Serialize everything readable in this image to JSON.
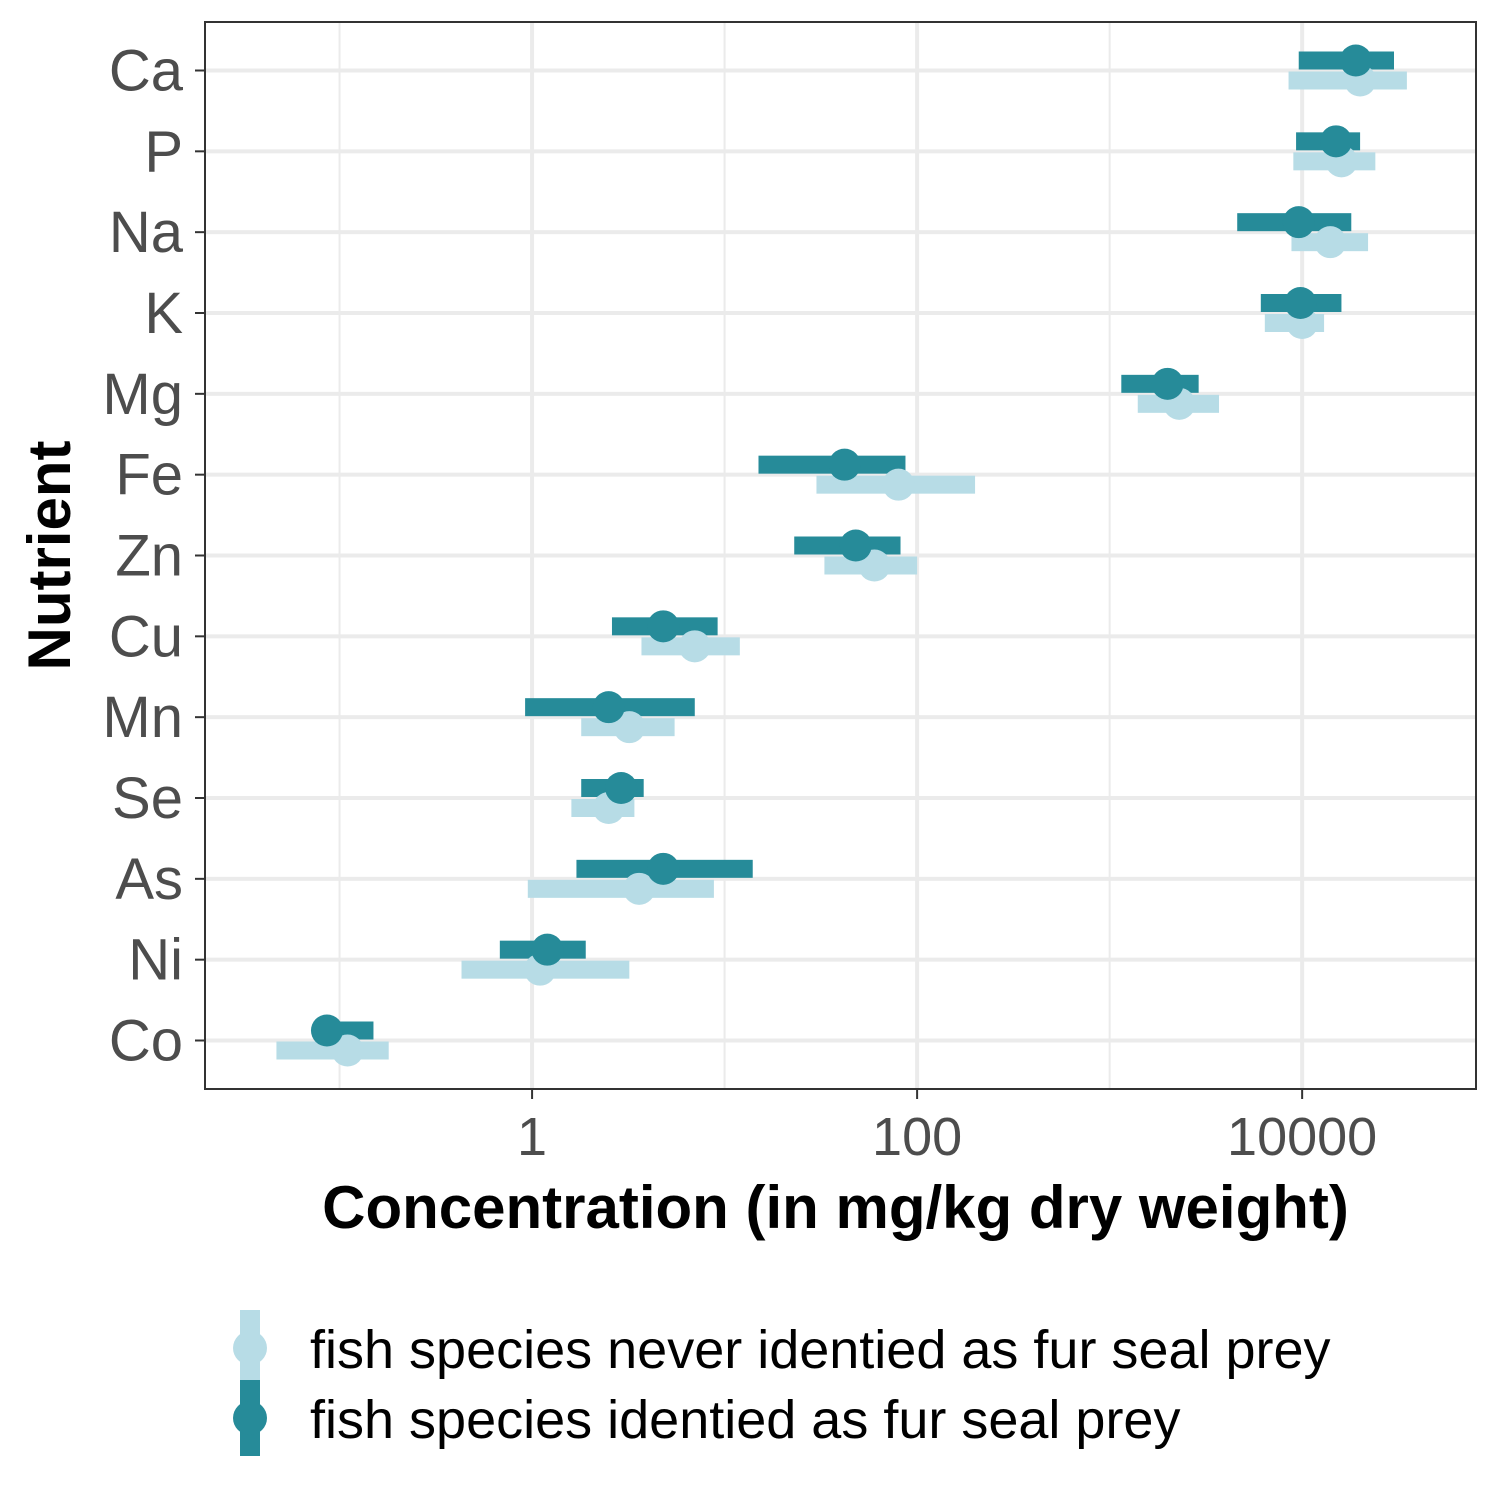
{
  "colors": {
    "not_prey": "#b7dce6",
    "prey": "#268b99",
    "grid": "#ebebeb",
    "panel_border": "#333333",
    "tick_text": "#4d4d4d"
  },
  "chart_data": {
    "type": "scatter",
    "subtype": "dot-and-range (point with horizontal interval)",
    "title": "",
    "xlabel": "Concentration (in mg/kg dry weight)",
    "ylabel": "Nutrient",
    "x_scale": "log10",
    "xlim": [
      0.02,
      80000
    ],
    "x_tick_labels": [
      "1",
      "100",
      "10000"
    ],
    "x_ticks": [
      1,
      100,
      10000
    ],
    "grid": true,
    "legend_position": "bottom",
    "categories": [
      "Ca",
      "P",
      "Na",
      "K",
      "Mg",
      "Fe",
      "Zn",
      "Cu",
      "Mn",
      "Se",
      "As",
      "Ni",
      "Co"
    ],
    "series": [
      {
        "name": "fish species never identied as fur seal prey",
        "color_key": "not_prey",
        "points": [
          {
            "category": "Ca",
            "value": 20000,
            "low": 8500,
            "high": 35000
          },
          {
            "category": "P",
            "value": 16000,
            "low": 9000,
            "high": 24000
          },
          {
            "category": "Na",
            "value": 14000,
            "low": 8800,
            "high": 22000
          },
          {
            "category": "K",
            "value": 10000,
            "low": 6400,
            "high": 13000
          },
          {
            "category": "Mg",
            "value": 2300,
            "low": 1400,
            "high": 3700
          },
          {
            "category": "Fe",
            "value": 80,
            "low": 30,
            "high": 200
          },
          {
            "category": "Zn",
            "value": 60,
            "low": 33,
            "high": 100
          },
          {
            "category": "Cu",
            "value": 7,
            "low": 3.7,
            "high": 12
          },
          {
            "category": "Mn",
            "value": 3.2,
            "low": 1.8,
            "high": 5.5
          },
          {
            "category": "Se",
            "value": 2.5,
            "low": 1.6,
            "high": 3.4
          },
          {
            "category": "As",
            "value": 3.6,
            "low": 0.95,
            "high": 8.8
          },
          {
            "category": "Ni",
            "value": 1.1,
            "low": 0.43,
            "high": 3.2
          },
          {
            "category": "Co",
            "value": 0.11,
            "low": 0.047,
            "high": 0.18
          }
        ]
      },
      {
        "name": "fish species identied as fur seal prey",
        "color_key": "prey",
        "points": [
          {
            "category": "Ca",
            "value": 19000,
            "low": 9600,
            "high": 30000
          },
          {
            "category": "P",
            "value": 15000,
            "low": 9300,
            "high": 20000
          },
          {
            "category": "Na",
            "value": 9600,
            "low": 4600,
            "high": 18000
          },
          {
            "category": "K",
            "value": 9800,
            "low": 6100,
            "high": 16000
          },
          {
            "category": "Mg",
            "value": 2000,
            "low": 1150,
            "high": 2900
          },
          {
            "category": "Fe",
            "value": 42,
            "low": 15,
            "high": 87
          },
          {
            "category": "Zn",
            "value": 48,
            "low": 23,
            "high": 82
          },
          {
            "category": "Cu",
            "value": 4.8,
            "low": 2.6,
            "high": 9.2
          },
          {
            "category": "Mn",
            "value": 2.5,
            "low": 0.92,
            "high": 7
          },
          {
            "category": "Se",
            "value": 2.9,
            "low": 1.8,
            "high": 3.8
          },
          {
            "category": "As",
            "value": 4.8,
            "low": 1.7,
            "high": 14
          },
          {
            "category": "Ni",
            "value": 1.2,
            "low": 0.68,
            "high": 1.9
          },
          {
            "category": "Co",
            "value": 0.086,
            "low": 0.078,
            "high": 0.15
          }
        ]
      }
    ]
  }
}
